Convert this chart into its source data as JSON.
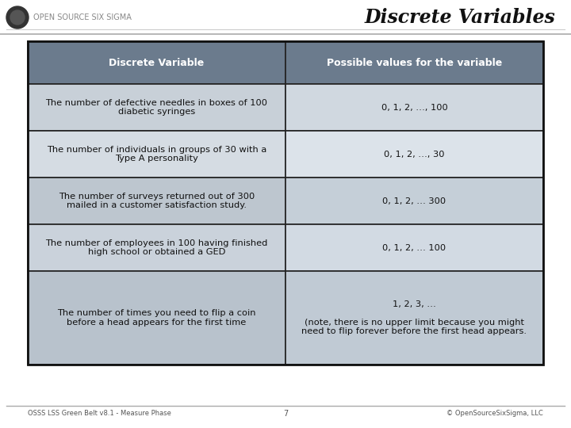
{
  "title": "Discrete Variables",
  "header_col1": "Discrete Variable",
  "header_col2": "Possible values for the variable",
  "rows": [
    {
      "col1": "The number of defective needles in boxes of 100\ndiabetic syringes",
      "col2": "0, 1, 2, …, 100"
    },
    {
      "col1": "The number of individuals in groups of 30 with a\nType A personality",
      "col2": "0, 1, 2, …, 30"
    },
    {
      "col1": "The number of surveys returned out of 300\nmailed in a customer satisfaction study.",
      "col2": "0, 1, 2, … 300"
    },
    {
      "col1": "The number of employees in 100 having finished\nhigh school or obtained a GED",
      "col2": "0, 1, 2, … 100"
    },
    {
      "col1": "The number of times you need to flip a coin\nbefore a head appears for the first time",
      "col2": "1, 2, 3, …\n\n(note, there is no upper limit because you might\nneed to flip forever before the first head appears."
    }
  ],
  "bg_color": "#ffffff",
  "header_bg": "#5a6a7a",
  "header_fg": "#ffffff",
  "cell_bg_light": "#d8dde4",
  "cell_bg_dark": "#b0bac4",
  "table_border_color": "#222222",
  "title_color": "#222222",
  "footer_left": "OSSS LSS Green Belt v8.1 - Measure Phase",
  "footer_center": "7",
  "footer_right": "© OpenSourceSixSigma, LLC",
  "logo_text": "OPEN SOURCE SIX SIGMA",
  "header_line_color": "#aaaaaa",
  "top_title_italic": true,
  "col_split": 0.5
}
